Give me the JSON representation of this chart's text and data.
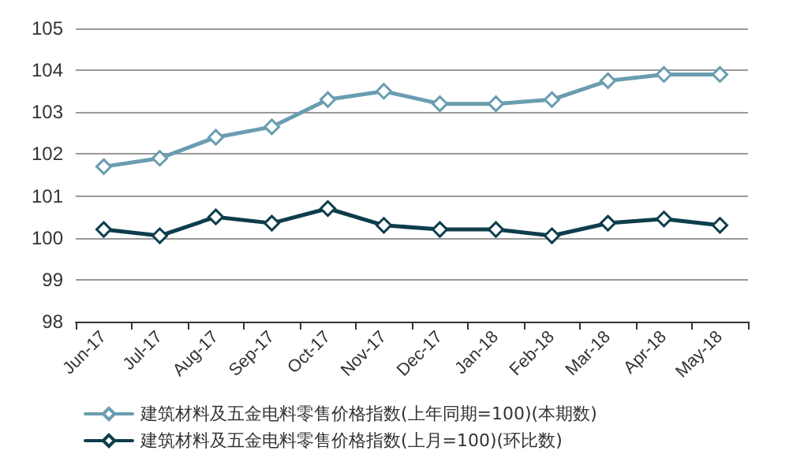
{
  "chart_data": {
    "type": "line",
    "categories": [
      "Jun-17",
      "Jul-17",
      "Aug-17",
      "Sep-17",
      "Oct-17",
      "Nov-17",
      "Dec-17",
      "Jan-18",
      "Feb-18",
      "Mar-18",
      "Apr-18",
      "May-18"
    ],
    "series": [
      {
        "name": "建筑材料及五金电料零售价格指数(上年同期=100)(本期数)",
        "color": "#6a9db0",
        "values": [
          101.7,
          101.9,
          102.4,
          102.65,
          103.3,
          103.5,
          103.2,
          103.2,
          103.3,
          103.75,
          103.9,
          103.9
        ]
      },
      {
        "name": "建筑材料及五金电料零售价格指数(上月=100)(环比数)",
        "color": "#0e3d4c",
        "values": [
          100.2,
          100.05,
          100.5,
          100.35,
          100.7,
          100.3,
          100.2,
          100.2,
          100.05,
          100.35,
          100.45,
          100.3
        ]
      }
    ],
    "ylim": [
      98,
      105
    ],
    "yticks": [
      98,
      99,
      100,
      101,
      102,
      103,
      104,
      105
    ],
    "grid": "y",
    "legend": "bottom",
    "marker": "diamond",
    "line_style": "solid"
  }
}
